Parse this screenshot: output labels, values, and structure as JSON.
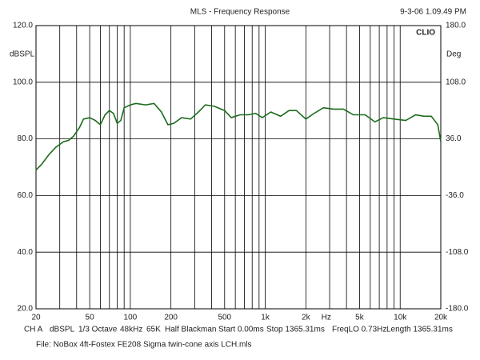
{
  "chart_data": {
    "type": "line",
    "title": "MLS - Frequency Response",
    "timestamp": "9-3-06 1.09.49 PM",
    "brand": "CLIO",
    "ylabel": "dBSPL",
    "y2label": "Deg",
    "xlabel": "Hz",
    "xlog": true,
    "grid": true,
    "xlim": [
      20,
      20000
    ],
    "ylim": [
      20,
      120
    ],
    "y2lim": [
      -180,
      180
    ],
    "yticks": [
      {
        "value": 20,
        "label": "20.0"
      },
      {
        "value": 40,
        "label": "40.0"
      },
      {
        "value": 60,
        "label": "60.0"
      },
      {
        "value": 80,
        "label": "80.0"
      },
      {
        "value": 100,
        "label": "100.0"
      },
      {
        "value": 120,
        "label": "120.0"
      }
    ],
    "y2ticks": [
      {
        "value": -180,
        "label": "-180.0"
      },
      {
        "value": -108,
        "label": "-108.0"
      },
      {
        "value": -36,
        "label": "-36.0"
      },
      {
        "value": 36,
        "label": "36.0"
      },
      {
        "value": 108,
        "label": "108.0"
      },
      {
        "value": 180,
        "label": "180.0"
      }
    ],
    "xticks": [
      20,
      50,
      100,
      200,
      500,
      {
        "value": 1000,
        "label": "1k"
      },
      {
        "value": 2000,
        "label": "2k"
      },
      {
        "value": 5000,
        "label": "5k"
      },
      {
        "value": 10000,
        "label": "10k"
      },
      {
        "value": 20000,
        "label": "20k"
      }
    ],
    "xgrid": [
      30,
      40,
      50,
      60,
      70,
      80,
      90,
      100,
      200,
      300,
      400,
      500,
      600,
      700,
      800,
      900,
      1000,
      2000,
      3000,
      4000,
      5000,
      6000,
      7000,
      8000,
      9000,
      10000
    ],
    "x": [
      20,
      22,
      25,
      28,
      32,
      35,
      38,
      42,
      45,
      50,
      55,
      60,
      65,
      70,
      75,
      80,
      85,
      90,
      100,
      110,
      130,
      150,
      170,
      190,
      210,
      240,
      280,
      320,
      360,
      420,
      500,
      560,
      650,
      750,
      850,
      950,
      1100,
      1300,
      1500,
      1700,
      2000,
      2300,
      2700,
      3200,
      3800,
      4500,
      5500,
      6500,
      7500,
      9000,
      11000,
      13000,
      15000,
      17000,
      19000,
      20000
    ],
    "series": [
      {
        "name": "dBSPL",
        "color": "#1b6b1b",
        "values": [
          69,
          71,
          74.5,
          77,
          79,
          79.5,
          81,
          84,
          87,
          87.5,
          86.5,
          85,
          88.5,
          90,
          89,
          85.5,
          86.5,
          91,
          92,
          92.5,
          92,
          92.5,
          89.5,
          85,
          85.5,
          87.5,
          87,
          89.5,
          92,
          91.5,
          90,
          87.5,
          88.5,
          88.5,
          89,
          87.5,
          89.5,
          88,
          90,
          90,
          87,
          89,
          91,
          90.5,
          90.5,
          88.5,
          88.5,
          86,
          87.5,
          87,
          86.5,
          88.5,
          88,
          88,
          85,
          79
        ]
      }
    ],
    "info": [
      "CH A",
      "dBSPL",
      "1/3 Octave",
      "48kHz",
      "65K",
      "Half Blackman",
      "Start 0.00ms",
      "Stop 1365.31ms",
      "FreqLO 0.73Hz",
      "Length 1365.31ms"
    ],
    "file": "File: NoBox 4ft-Fostex FE208 Sigma twin-cone axis LCH.mls"
  }
}
